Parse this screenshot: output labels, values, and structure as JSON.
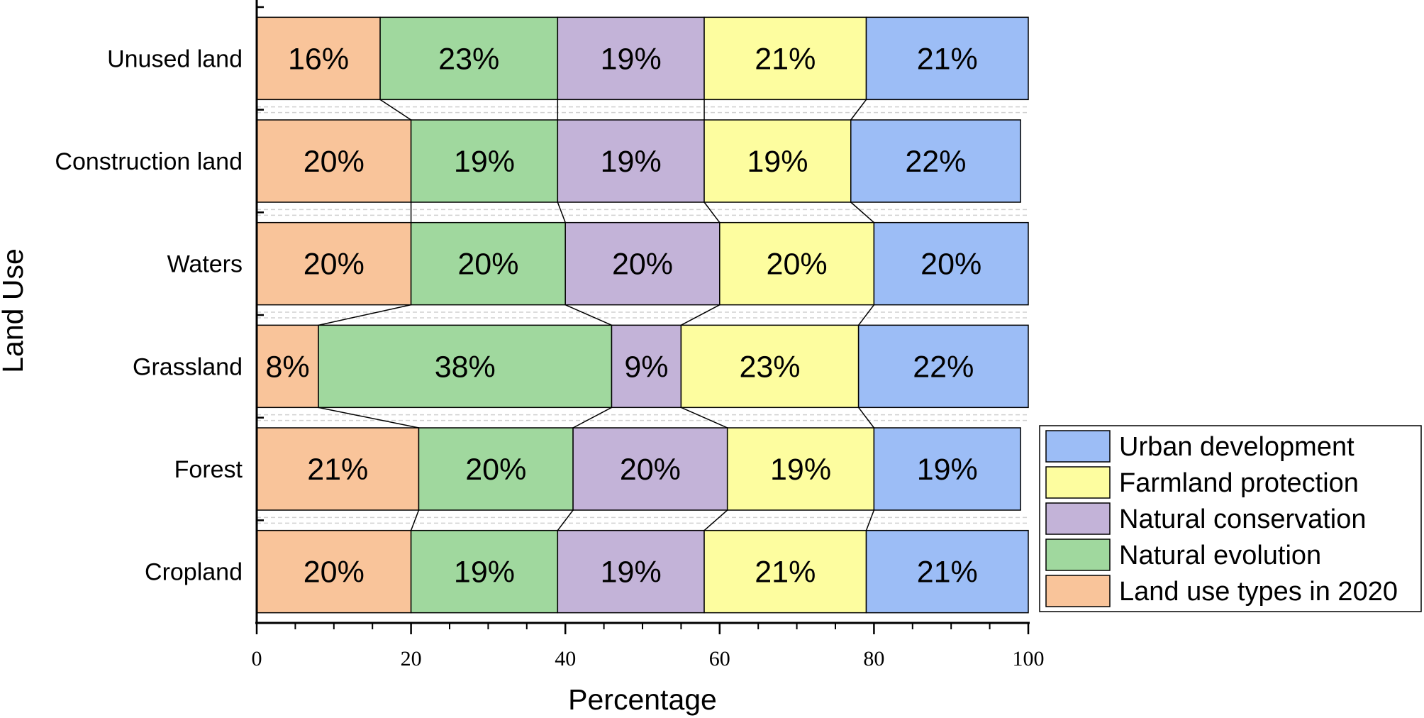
{
  "chart_data": {
    "type": "bar",
    "orientation": "horizontal",
    "stacked": true,
    "title": "",
    "xlabel": "Percentage",
    "ylabel": "Land Use",
    "xlim": [
      0,
      100
    ],
    "xticks": [
      "0",
      "20",
      "40",
      "60",
      "80",
      "100"
    ],
    "categories": [
      "Cropland",
      "Forest",
      "Grassland",
      "Waters",
      "Construction land",
      "Unused land"
    ],
    "series": [
      {
        "name": "Land use types in 2020",
        "color": "#f9c49a",
        "values": [
          20,
          21,
          8,
          20,
          20,
          16
        ],
        "labels": [
          "20%",
          "21%",
          "8%",
          "20%",
          "20%",
          "16%"
        ]
      },
      {
        "name": "Natural evolution",
        "color": "#a0d89e",
        "values": [
          19,
          20,
          38,
          20,
          19,
          23
        ],
        "labels": [
          "19%",
          "20%",
          "38%",
          "20%",
          "19%",
          "23%"
        ]
      },
      {
        "name": "Natural conservation",
        "color": "#c3b3d8",
        "values": [
          19,
          20,
          9,
          20,
          19,
          19
        ],
        "labels": [
          "19%",
          "20%",
          "9%",
          "20%",
          "19%",
          "19%"
        ]
      },
      {
        "name": "Farmland protection",
        "color": "#fdfd9f",
        "values": [
          21,
          19,
          23,
          20,
          19,
          21
        ],
        "labels": [
          "21%",
          "19%",
          "23%",
          "20%",
          "19%",
          "21%"
        ]
      },
      {
        "name": "Urban development",
        "color": "#9cbdf6",
        "values": [
          21,
          19,
          22,
          20,
          22,
          21
        ],
        "labels": [
          "21%",
          "19%",
          "22%",
          "20%",
          "22%",
          "21%"
        ]
      }
    ],
    "legend_order": [
      "Urban development",
      "Farmland protection",
      "Natural conservation",
      "Natural evolution",
      "Land use types in 2020"
    ],
    "legend_position": "bottom-right outside",
    "connector_lines": true,
    "grid": false
  }
}
